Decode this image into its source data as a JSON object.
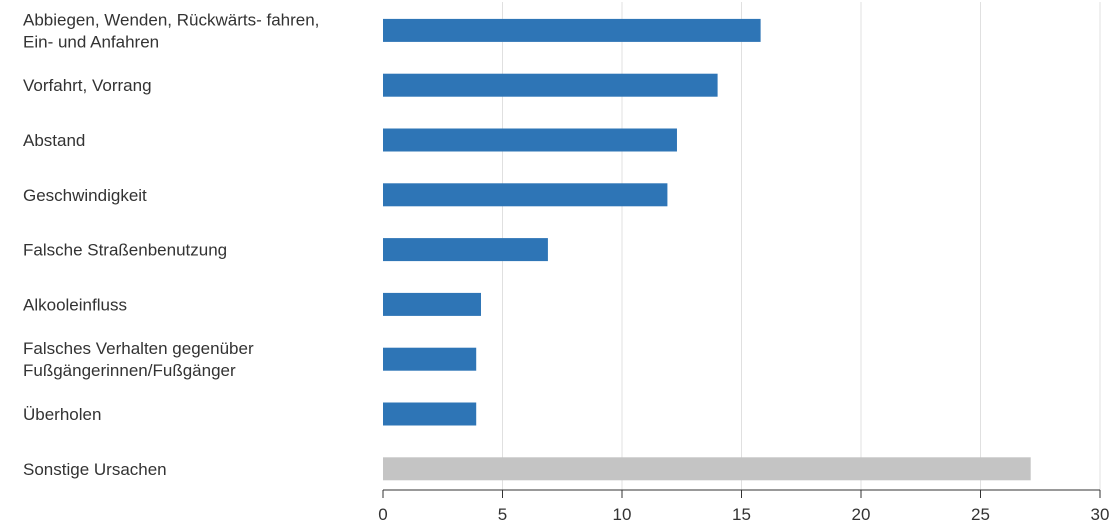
{
  "chart_data": {
    "type": "bar",
    "orientation": "horizontal",
    "categories": [
      [
        "Abbiegen, Wenden, Rückwärts- fahren,",
        "Ein- und Anfahren"
      ],
      [
        "Vorfahrt, Vorrang"
      ],
      [
        "Abstand"
      ],
      [
        "Geschwindigkeit"
      ],
      [
        "Falsche Straßenbenutzung"
      ],
      [
        "Alkooleinfluss"
      ],
      [
        "Falsches Verhalten gegenüber",
        "Fußgängerinnen/Fußgänger"
      ],
      [
        "Überholen"
      ],
      [
        "Sonstige Ursachen"
      ]
    ],
    "values": [
      15.8,
      14.0,
      12.3,
      11.9,
      6.9,
      4.1,
      3.9,
      3.9,
      27.1
    ],
    "bar_colors": [
      "#2e75b6",
      "#2e75b6",
      "#2e75b6",
      "#2e75b6",
      "#2e75b6",
      "#2e75b6",
      "#2e75b6",
      "#2e75b6",
      "#c4c4c4"
    ],
    "xlim": [
      0,
      30
    ],
    "xticks": [
      0,
      5,
      10,
      15,
      20,
      25,
      30
    ],
    "grid": "vertical",
    "title": "",
    "xlabel": "",
    "ylabel": ""
  }
}
